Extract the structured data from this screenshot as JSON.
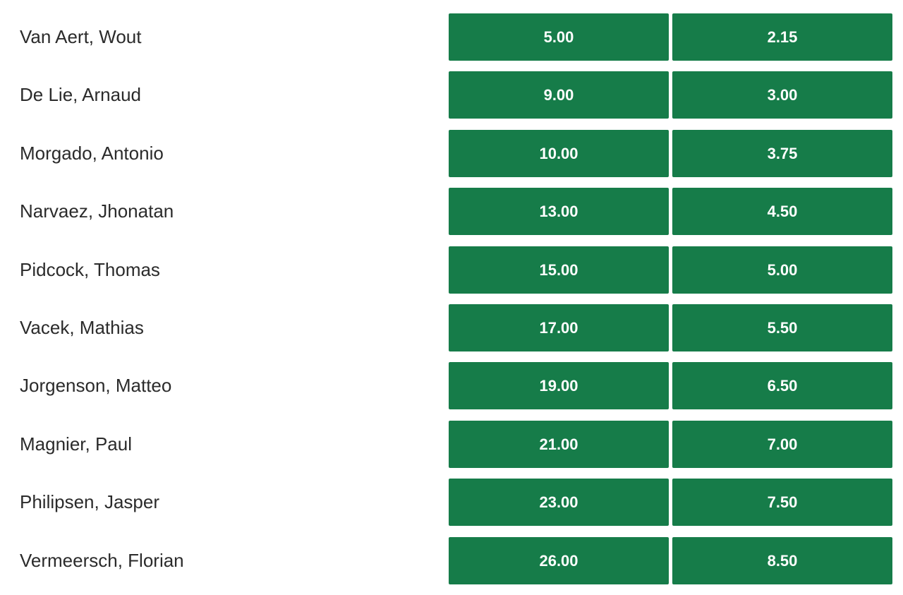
{
  "rows": [
    {
      "name": "Van Aert, Wout",
      "odds_1": "5.00",
      "odds_2": "2.15"
    },
    {
      "name": "De Lie, Arnaud",
      "odds_1": "9.00",
      "odds_2": "3.00"
    },
    {
      "name": "Morgado, Antonio",
      "odds_1": "10.00",
      "odds_2": "3.75"
    },
    {
      "name": "Narvaez, Jhonatan",
      "odds_1": "13.00",
      "odds_2": "4.50"
    },
    {
      "name": "Pidcock, Thomas",
      "odds_1": "15.00",
      "odds_2": "5.00"
    },
    {
      "name": "Vacek, Mathias",
      "odds_1": "17.00",
      "odds_2": "5.50"
    },
    {
      "name": "Jorgenson, Matteo",
      "odds_1": "19.00",
      "odds_2": "6.50"
    },
    {
      "name": "Magnier, Paul",
      "odds_1": "21.00",
      "odds_2": "7.00"
    },
    {
      "name": "Philipsen, Jasper",
      "odds_1": "23.00",
      "odds_2": "7.50"
    },
    {
      "name": "Vermeersch, Florian",
      "odds_1": "26.00",
      "odds_2": "8.50"
    }
  ],
  "colors": {
    "button_bg": "#167c49",
    "button_text": "#ffffff",
    "name_text": "#2b2b2b"
  }
}
